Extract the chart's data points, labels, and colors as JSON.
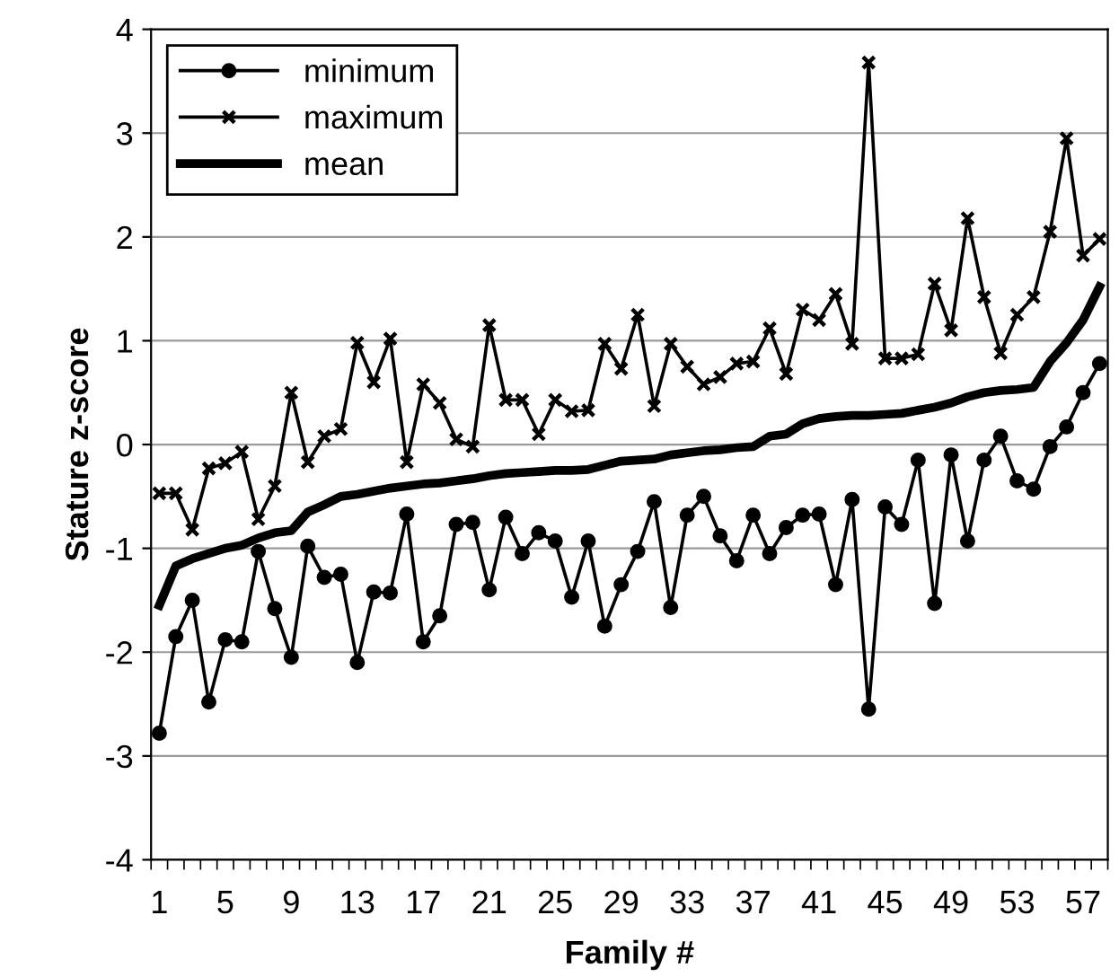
{
  "chart_data": {
    "type": "line",
    "xlabel": "Family #",
    "ylabel": "Stature z-score",
    "categories": [
      "1",
      null,
      null,
      null,
      "5",
      null,
      null,
      null,
      "9",
      null,
      null,
      null,
      "13",
      null,
      null,
      null,
      "17",
      null,
      null,
      null,
      "21",
      null,
      null,
      null,
      "25",
      null,
      null,
      null,
      "29",
      null,
      null,
      null,
      "33",
      null,
      null,
      null,
      "37",
      null,
      null,
      null,
      "41",
      null,
      null,
      null,
      "45",
      null,
      null,
      null,
      "49",
      null,
      null,
      null,
      "53",
      null,
      null,
      null,
      "57",
      null
    ],
    "series": [
      {
        "name": "minimum",
        "color": "#000000",
        "marker": "circle",
        "values": [
          -2.78,
          -1.85,
          -1.5,
          -2.48,
          -1.88,
          -1.9,
          -1.03,
          -1.58,
          -2.05,
          -0.98,
          -1.28,
          -1.25,
          -2.1,
          -1.42,
          -1.43,
          -0.67,
          -1.9,
          -1.65,
          -0.77,
          -0.75,
          -1.4,
          -0.7,
          -1.05,
          -0.85,
          -0.93,
          -1.47,
          -0.93,
          -1.75,
          -1.35,
          -1.03,
          -0.55,
          -1.57,
          -0.68,
          -0.5,
          -0.88,
          -1.12,
          -0.68,
          -1.05,
          -0.8,
          -0.68,
          -0.67,
          -1.35,
          -0.53,
          -2.55,
          -0.6,
          -0.77,
          -0.15,
          -1.53,
          -0.1,
          -0.93,
          -0.15,
          0.08,
          -0.35,
          -0.43,
          -0.02,
          0.17,
          0.5,
          0.78
        ]
      },
      {
        "name": "maximum",
        "color": "#000000",
        "marker": "cross",
        "values": [
          -0.47,
          -0.47,
          -0.82,
          -0.23,
          -0.18,
          -0.07,
          -0.72,
          -0.4,
          0.5,
          -0.17,
          0.08,
          0.15,
          0.98,
          0.6,
          1.02,
          -0.17,
          0.58,
          0.4,
          0.05,
          -0.02,
          1.15,
          0.43,
          0.43,
          0.1,
          0.43,
          0.32,
          0.33,
          0.97,
          0.73,
          1.25,
          0.37,
          0.97,
          0.75,
          0.58,
          0.65,
          0.78,
          0.8,
          1.12,
          0.68,
          1.3,
          1.2,
          1.45,
          0.97,
          3.68,
          0.83,
          0.83,
          0.87,
          1.55,
          1.1,
          2.18,
          1.42,
          0.88,
          1.25,
          1.42,
          2.05,
          2.95,
          1.82,
          1.98
        ]
      },
      {
        "name": "mean",
        "color": "#000000",
        "marker": "none",
        "values": [
          -1.55,
          -1.17,
          -1.1,
          -1.05,
          -1.0,
          -0.97,
          -0.9,
          -0.85,
          -0.83,
          -0.65,
          -0.58,
          -0.5,
          -0.48,
          -0.45,
          -0.42,
          -0.4,
          -0.38,
          -0.37,
          -0.35,
          -0.33,
          -0.3,
          -0.28,
          -0.27,
          -0.26,
          -0.25,
          -0.25,
          -0.24,
          -0.2,
          -0.16,
          -0.15,
          -0.14,
          -0.1,
          -0.08,
          -0.06,
          -0.05,
          -0.03,
          -0.02,
          0.08,
          0.1,
          0.2,
          0.25,
          0.27,
          0.28,
          0.28,
          0.29,
          0.3,
          0.33,
          0.36,
          0.4,
          0.46,
          0.5,
          0.52,
          0.53,
          0.55,
          0.8,
          0.98,
          1.2,
          1.52
        ]
      }
    ],
    "ylim": [
      -4,
      4
    ],
    "yticks": [
      -4,
      -3,
      -2,
      -1,
      0,
      1,
      2,
      3,
      4
    ],
    "grid": "y",
    "legend": "top left"
  }
}
